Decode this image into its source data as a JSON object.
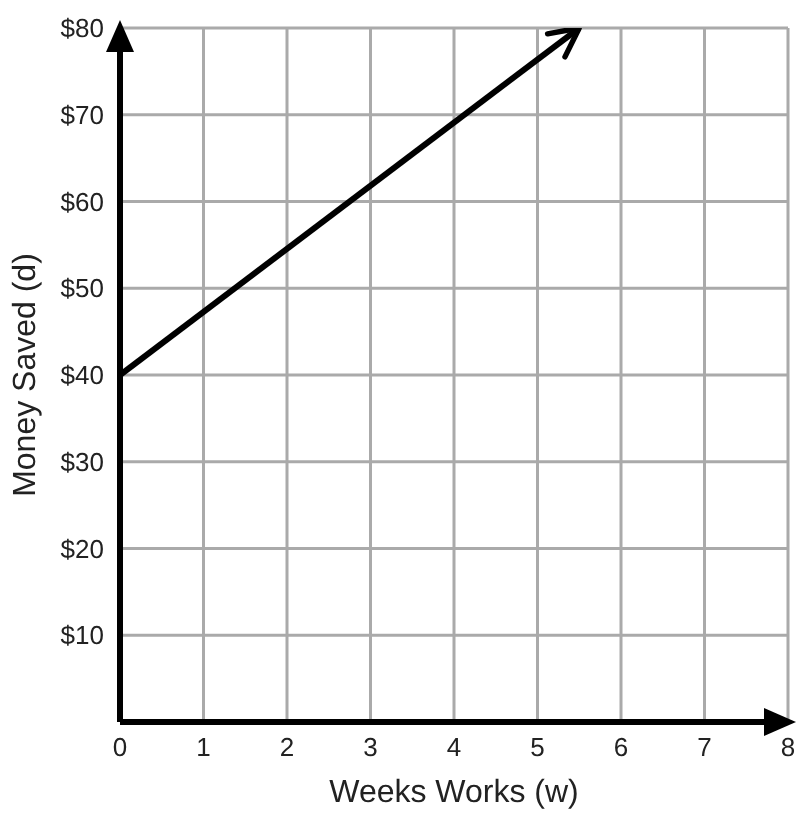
{
  "chart_data": {
    "type": "line",
    "xlabel": "Weeks Works (w)",
    "ylabel": "Money Saved (d)",
    "x": [
      0,
      5.5
    ],
    "series": [
      {
        "color": "#000000",
        "values": [
          40,
          80
        ]
      }
    ],
    "xlim": [
      0,
      8
    ],
    "xticks": [
      0,
      1,
      2,
      3,
      4,
      5,
      6,
      7,
      8
    ],
    "ylim": [
      0,
      80
    ],
    "yticks": [
      {
        "value": 0,
        "label": null
      },
      {
        "value": 10,
        "label": "$10"
      },
      {
        "value": 20,
        "label": "$20"
      },
      {
        "value": 30,
        "label": "$30"
      },
      {
        "value": 40,
        "label": "$40"
      },
      {
        "value": 50,
        "label": "$50"
      },
      {
        "value": 60,
        "label": "$60"
      },
      {
        "value": 70,
        "label": "$70"
      },
      {
        "value": 80,
        "label": "$80"
      }
    ],
    "grid": true,
    "marker": "none",
    "line_style": "solid"
  }
}
